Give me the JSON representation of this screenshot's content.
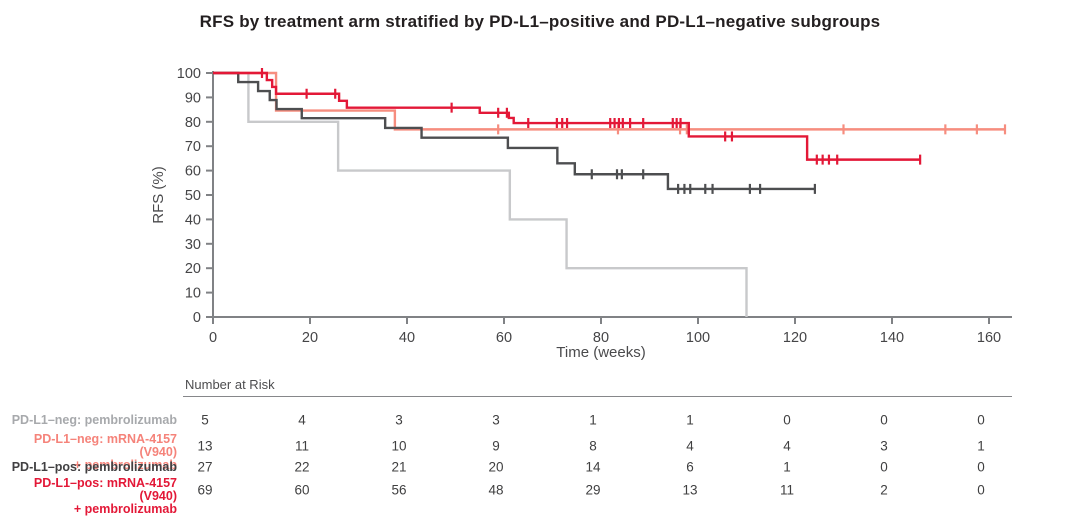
{
  "title": "RFS by treatment arm stratified by PD-L1–positive and PD-L1–negative subgroups",
  "chart_data": {
    "type": "line",
    "subtype": "kaplan-meier-step",
    "title": "RFS by treatment arm stratified by PD-L1–positive and PD-L1–negative subgroups",
    "xlabel": "Time (weeks)",
    "ylabel": "RFS (%)",
    "xlim": [
      0,
      160
    ],
    "ylim": [
      0,
      100
    ],
    "xticks": [
      0,
      20,
      40,
      60,
      80,
      100,
      120,
      140,
      160
    ],
    "yticks": [
      0,
      10,
      20,
      30,
      40,
      50,
      60,
      70,
      80,
      90,
      100
    ],
    "grid": false,
    "legend_position": "left-of-risk-table",
    "axis_color": "#808285",
    "tick_label_color": "#454547",
    "risk_table": {
      "title": "Number at Risk",
      "time_points": [
        0,
        20,
        40,
        60,
        80,
        100,
        120,
        140,
        160
      ]
    },
    "series": [
      {
        "name": "PD-L1-neg: pembrolizumab",
        "label_lines": [
          "PD-L1–neg: pembrolizumab"
        ],
        "label_color": "#a7a9ac",
        "color": "#c8c9cb",
        "start_value": 100,
        "steps": [
          [
            7.3,
            80
          ],
          [
            25.8,
            60
          ],
          [
            61.2,
            40
          ],
          [
            72.9,
            20
          ],
          [
            110,
            0
          ]
        ],
        "end_time": 110,
        "censor_times": [],
        "at_risk": [
          5,
          4,
          3,
          3,
          1,
          1,
          0,
          0,
          0
        ]
      },
      {
        "name": "PD-L1-neg: mRNA-4157 (V940) + pembrolizumab",
        "label_lines": [
          "PD-L1–neg: mRNA-4157 (V940)",
          "+ pembrolizumab"
        ],
        "label_color": "#f5837a",
        "color": "#f68d7f",
        "start_value": 100,
        "steps": [
          [
            13,
            84.6
          ],
          [
            37.5,
            76.9
          ]
        ],
        "end_time": 163.3,
        "censor_times": [
          58.8,
          83.5,
          96.3,
          97.7,
          130,
          151,
          157.5,
          163.3
        ],
        "at_risk": [
          13,
          11,
          10,
          9,
          8,
          4,
          4,
          3,
          1
        ]
      },
      {
        "name": "PD-L1-pos: pembrolizumab",
        "label_lines": [
          "PD-L1–pos: pembrolizumab"
        ],
        "label_color": "#414042",
        "color": "#4d4e50",
        "start_value": 100,
        "steps": [
          [
            5.2,
            96.3
          ],
          [
            9.3,
            92.6
          ],
          [
            11.7,
            88.9
          ],
          [
            13.1,
            85.2
          ],
          [
            18.3,
            81.5
          ],
          [
            35.5,
            77.5
          ],
          [
            43,
            73.5
          ],
          [
            60.8,
            69.3
          ],
          [
            71,
            63
          ],
          [
            74.6,
            58.5
          ],
          [
            93.8,
            52.5
          ]
        ],
        "end_time": 124.1,
        "censor_times": [
          78.1,
          83.3,
          84.3,
          88.7,
          95.9,
          97.2,
          98.4,
          101.5,
          103,
          110.7,
          112.8,
          124.1
        ],
        "at_risk": [
          27,
          22,
          21,
          20,
          14,
          6,
          1,
          0,
          0
        ]
      },
      {
        "name": "PD-L1-pos: mRNA-4157 (V940) + pembrolizumab",
        "label_lines": [
          "PD-L1–pos: mRNA-4157 (V940)",
          "+ pembrolizumab"
        ],
        "label_color": "#e31837",
        "color": "#e31837",
        "start_value": 100,
        "steps": [
          [
            11.1,
            97.1
          ],
          [
            12.2,
            94.3
          ],
          [
            13,
            91.5
          ],
          [
            26,
            88.6
          ],
          [
            27.6,
            85.8
          ],
          [
            55,
            83.7
          ],
          [
            61,
            81.6
          ],
          [
            62,
            79.5
          ],
          [
            98.1,
            74
          ],
          [
            122.5,
            64.5
          ]
        ],
        "end_time": 145.8,
        "censor_times": [
          10.1,
          19.3,
          25.2,
          49.2,
          58.8,
          60.6,
          65,
          70.9,
          72,
          73,
          81.9,
          82.8,
          83.7,
          84.5,
          86,
          88.7,
          94.8,
          95.6,
          96.4,
          105.6,
          107,
          124.5,
          125.7,
          127,
          128.7,
          145.8
        ],
        "at_risk": [
          69,
          60,
          56,
          48,
          29,
          13,
          11,
          2,
          0
        ]
      }
    ]
  }
}
